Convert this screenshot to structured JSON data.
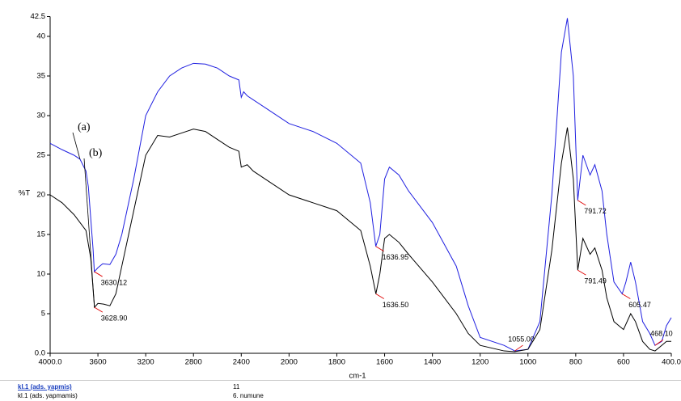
{
  "chart_data": {
    "type": "line",
    "xlabel": "cm-1",
    "ylabel": "%T",
    "xlim": [
      4000,
      400
    ],
    "ylim": [
      0,
      42.5
    ],
    "xticks": [
      {
        "value": 4000,
        "label": "4000.0"
      },
      3600,
      3200,
      2800,
      2400,
      2000,
      1800,
      1600,
      1400,
      1200,
      1000,
      800,
      600,
      {
        "value": 400,
        "label": "400.0"
      }
    ],
    "yticks": [
      {
        "value": 0,
        "label": "0.0"
      },
      5,
      10,
      15,
      20,
      25,
      30,
      35,
      40,
      42.5
    ],
    "series": [
      {
        "name": "(a)",
        "color": "#1f1fe0",
        "x": [
          4000,
          3900,
          3800,
          3750,
          3700,
          3680,
          3660,
          3640,
          3630.12,
          3600,
          3560,
          3500,
          3450,
          3400,
          3300,
          3200,
          3100,
          3000,
          2900,
          2800,
          2700,
          2600,
          2500,
          2420,
          2400,
          2380,
          2350,
          2300,
          2200,
          2000,
          1900,
          1800,
          1700,
          1660,
          1636.95,
          1620,
          1600,
          1580,
          1540,
          1500,
          1400,
          1300,
          1250,
          1200,
          1100,
          1055,
          1000,
          950,
          900,
          860,
          835,
          810,
          791.72,
          770,
          740,
          720,
          690,
          670,
          640,
          605.47,
          590,
          570,
          550,
          520,
          490,
          468.1,
          440,
          420,
          400
        ],
        "values": [
          26.5,
          25.7,
          25.0,
          24.5,
          23.0,
          21,
          17,
          13,
          10.3,
          10.8,
          11.3,
          11.2,
          12.5,
          15,
          22,
          30,
          33,
          35,
          36,
          36.6,
          36.5,
          36,
          35,
          34.5,
          32.3,
          33,
          32.5,
          32,
          31,
          29,
          28,
          26.5,
          24,
          19,
          13.5,
          15,
          22,
          23.5,
          22.5,
          20.5,
          16.5,
          11,
          6,
          2,
          1,
          0.3,
          0.5,
          4,
          20,
          38,
          42.3,
          35,
          19.3,
          25,
          22.5,
          23.8,
          20.5,
          15,
          9,
          7.5,
          9,
          11.5,
          9,
          4,
          2.5,
          1.0,
          1.5,
          3.5,
          4.5
        ]
      },
      {
        "name": "(b)",
        "color": "#000000",
        "x": [
          4000,
          3900,
          3800,
          3700,
          3660,
          3640,
          3628.9,
          3600,
          3550,
          3500,
          3450,
          3400,
          3300,
          3200,
          3100,
          3000,
          2900,
          2800,
          2700,
          2600,
          2500,
          2420,
          2400,
          2350,
          2300,
          2200,
          2000,
          1900,
          1800,
          1700,
          1660,
          1636.5,
          1620,
          1600,
          1580,
          1540,
          1500,
          1400,
          1300,
          1250,
          1200,
          1100,
          1055,
          1000,
          950,
          900,
          860,
          835,
          810,
          791.49,
          770,
          740,
          720,
          690,
          670,
          640,
          620,
          600,
          570,
          550,
          520,
          490,
          468,
          440,
          420,
          400
        ],
        "values": [
          20.0,
          19.0,
          17.5,
          15.5,
          12,
          8,
          5.8,
          6.3,
          6.2,
          6.0,
          7.5,
          11,
          18,
          25,
          27.5,
          27.3,
          27.8,
          28.3,
          28,
          27,
          26,
          25.5,
          23.5,
          23.8,
          23,
          22,
          20,
          19,
          18,
          15.5,
          11,
          7.5,
          10,
          14.5,
          15,
          14,
          12.5,
          9,
          5,
          2.5,
          1,
          0.3,
          0.2,
          0.5,
          3,
          13,
          24,
          28.5,
          22,
          10.5,
          14.5,
          12.5,
          13.3,
          10.5,
          7,
          4,
          3.5,
          3,
          5,
          4,
          1.5,
          0.5,
          0.3,
          1,
          1.5,
          1.5
        ]
      }
    ],
    "annotations": [
      {
        "x": 3630.12,
        "y": 10.3,
        "label": "3630.12"
      },
      {
        "x": 3628.9,
        "y": 5.8,
        "label": "3628.90"
      },
      {
        "x": 1636.95,
        "y": 13.5,
        "label": "1636.95"
      },
      {
        "x": 1636.5,
        "y": 7.5,
        "label": "1636.50"
      },
      {
        "x": 1055,
        "y": 0.3,
        "label": "1055.00"
      },
      {
        "x": 791.72,
        "y": 19.3,
        "label": "791.72"
      },
      {
        "x": 791.49,
        "y": 10.5,
        "label": "791.49"
      },
      {
        "x": 605.47,
        "y": 7.5,
        "label": "605.47"
      },
      {
        "x": 468.1,
        "y": 1.0,
        "label": "468.10"
      }
    ]
  },
  "footer": {
    "rows": [
      [
        "kl.1 (ads. yapmis)",
        "11"
      ],
      [
        "kl.1 (ads. yapmamis)",
        "6. numune"
      ]
    ]
  }
}
